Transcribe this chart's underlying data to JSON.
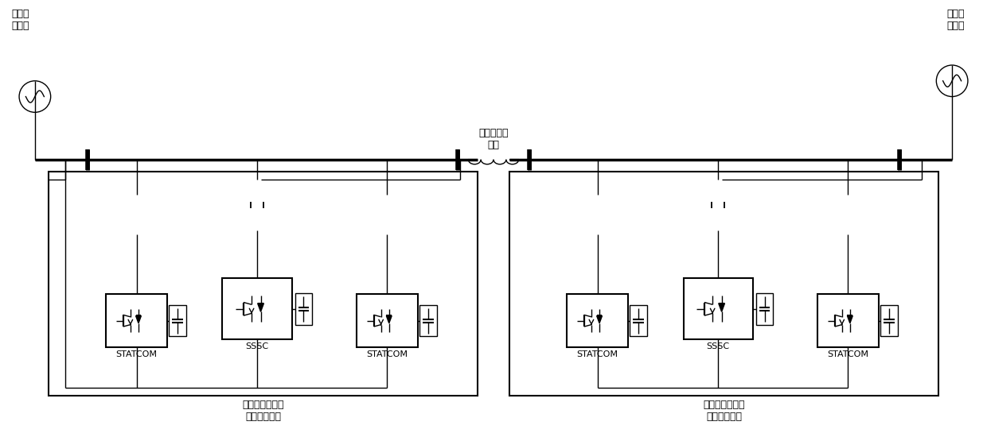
{
  "background_color": "#ffffff",
  "line_color": "#000000",
  "text_color": "#000000",
  "font_size_label": 9,
  "font_size_small": 8,
  "left_label": "送端交\n流系统",
  "right_label": "受端交\n流系统",
  "center_label": "待谐谐输电\n线路",
  "left_box_label": "送端同步补偿式\n柔性谐谐装置",
  "right_box_label": "受端同步补偿式\n柔性谐谐装置",
  "sssc_label": "SSSC",
  "statcom_label": "STATCOM"
}
